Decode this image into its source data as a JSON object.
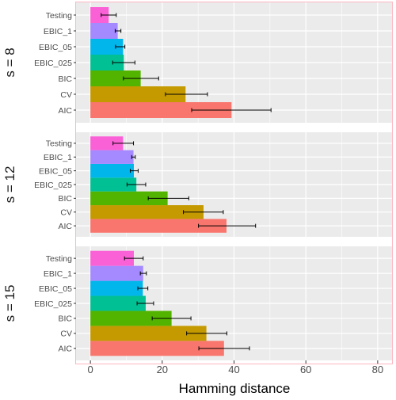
{
  "chart_data": {
    "type": "bar",
    "orientation": "horizontal",
    "xlabel": "Hamming distance",
    "xlim": [
      -4,
      84
    ],
    "xticks": [
      0,
      20,
      40,
      60,
      80
    ],
    "grid": true,
    "legend": "none",
    "panels": [
      {
        "label": "s = 8",
        "categories": [
          "AIC",
          "CV",
          "BIC",
          "EBIC_025",
          "EBIC_05",
          "EBIC_1",
          "Testing"
        ],
        "values": [
          39.3,
          26.5,
          14.0,
          9.3,
          9.1,
          7.6,
          5.1
        ],
        "error_low": [
          28.2,
          20.9,
          9.2,
          6.2,
          7.0,
          6.9,
          3.0
        ],
        "error_high": [
          50.3,
          32.6,
          19.0,
          12.4,
          9.6,
          8.5,
          7.2
        ]
      },
      {
        "label": "s = 12",
        "categories": [
          "AIC",
          "CV",
          "BIC",
          "EBIC_025",
          "EBIC_05",
          "EBIC_1",
          "Testing"
        ],
        "values": [
          37.9,
          31.5,
          21.5,
          12.8,
          12.1,
          12.0,
          9.1
        ],
        "error_low": [
          30.1,
          25.9,
          16.1,
          10.2,
          11.1,
          11.5,
          6.3
        ],
        "error_high": [
          46.0,
          37.0,
          27.4,
          15.4,
          13.3,
          12.5,
          12.0
        ]
      },
      {
        "label": "s = 15",
        "categories": [
          "AIC",
          "CV",
          "BIC",
          "EBIC_025",
          "EBIC_05",
          "EBIC_1",
          "Testing"
        ],
        "values": [
          37.2,
          32.3,
          22.6,
          15.4,
          14.6,
          14.7,
          12.1
        ],
        "error_low": [
          30.2,
          26.8,
          17.2,
          13.0,
          13.2,
          13.9,
          9.5
        ],
        "error_high": [
          44.3,
          38.0,
          28.0,
          17.6,
          16.0,
          15.6,
          14.7
        ]
      }
    ],
    "colors": {
      "AIC": "#F8766D",
      "CV": "#C49A00",
      "BIC": "#53B400",
      "EBIC_025": "#00C094",
      "EBIC_05": "#00B6EB",
      "EBIC_1": "#A58AFF",
      "Testing": "#FB61D7"
    },
    "panel_background": "#EBEBEB",
    "grid_color": "#FFFFFF"
  }
}
